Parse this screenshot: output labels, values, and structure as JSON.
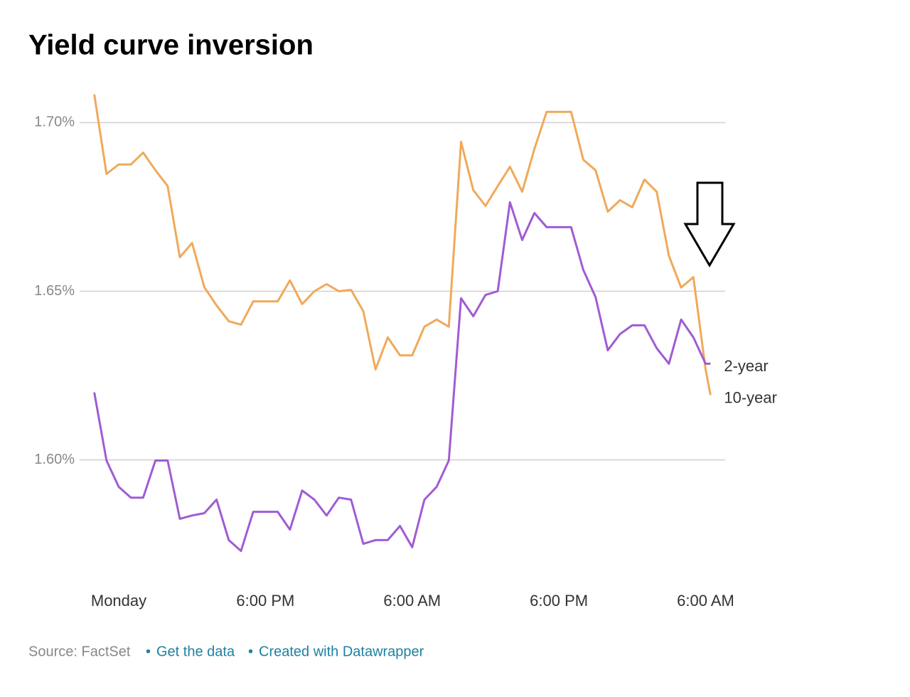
{
  "chart_data": {
    "type": "line",
    "title": "Yield curve inversion",
    "source": "Source: FactSet",
    "links": [
      "Get the data",
      "Created with Datawrapper"
    ],
    "x": [
      4,
      5,
      6,
      7,
      8,
      9,
      10,
      11,
      12,
      13,
      14,
      15,
      16,
      17,
      18,
      19,
      20,
      21,
      22,
      23,
      24,
      25,
      26,
      27,
      28,
      29,
      30,
      31,
      32,
      33,
      34,
      35,
      36,
      37,
      38,
      39,
      40,
      41,
      42,
      43,
      44,
      45,
      46,
      47,
      48,
      49,
      50,
      51,
      52,
      53,
      54,
      54.4
    ],
    "xlim": [
      2.8,
      55.6
    ],
    "xticks": [
      {
        "value": 6,
        "label": "Monday"
      },
      {
        "value": 18,
        "label": "6:00 PM"
      },
      {
        "value": 30,
        "label": "6:00 AM"
      },
      {
        "value": 42,
        "label": "6:00 PM"
      },
      {
        "value": 54,
        "label": "6:00 AM"
      }
    ],
    "ylim": [
      1.563,
      1.71
    ],
    "yticks": [
      {
        "value": 1.6,
        "label": "1.60%"
      },
      {
        "value": 1.65,
        "label": "1.65%"
      },
      {
        "value": 1.7,
        "label": "1.70%"
      }
    ],
    "grid": true,
    "series": [
      {
        "name": "10-year",
        "color": "#f0a95a",
        "values": [
          1.7084,
          1.6848,
          1.6876,
          1.6876,
          1.6911,
          1.6859,
          1.6812,
          1.6601,
          1.6643,
          1.6512,
          1.6458,
          1.6411,
          1.6401,
          1.647,
          1.647,
          1.647,
          1.6532,
          1.6462,
          1.65,
          1.6521,
          1.65,
          1.6504,
          1.6441,
          1.6268,
          1.6363,
          1.631,
          1.631,
          1.6395,
          1.6416,
          1.6395,
          1.6943,
          1.68,
          1.6753,
          1.6812,
          1.6869,
          1.6795,
          1.6922,
          1.7032,
          1.7032,
          1.7032,
          1.689,
          1.6859,
          1.6736,
          1.677,
          1.6749,
          1.6831,
          1.6795,
          1.6605,
          1.6511,
          1.6542,
          1.6268,
          1.6192
        ]
      },
      {
        "name": "2-year",
        "color": "#a05bd5",
        "values": [
          1.62,
          1.5998,
          1.592,
          1.5888,
          1.5888,
          1.5998,
          1.5998,
          1.5825,
          1.5835,
          1.5842,
          1.5882,
          1.5762,
          1.573,
          1.5846,
          1.5846,
          1.5846,
          1.5793,
          1.5909,
          1.5882,
          1.5835,
          1.5888,
          1.5882,
          1.5751,
          1.5762,
          1.5762,
          1.5804,
          1.5741,
          1.5882,
          1.592,
          1.5998,
          1.6479,
          1.6426,
          1.6489,
          1.65,
          1.6764,
          1.6652,
          1.6732,
          1.669,
          1.669,
          1.669,
          1.6563,
          1.6483,
          1.6325,
          1.6373,
          1.6399,
          1.6399,
          1.6331,
          1.6285,
          1.6416,
          1.6363,
          1.6285,
          1.6285
        ]
      }
    ]
  }
}
